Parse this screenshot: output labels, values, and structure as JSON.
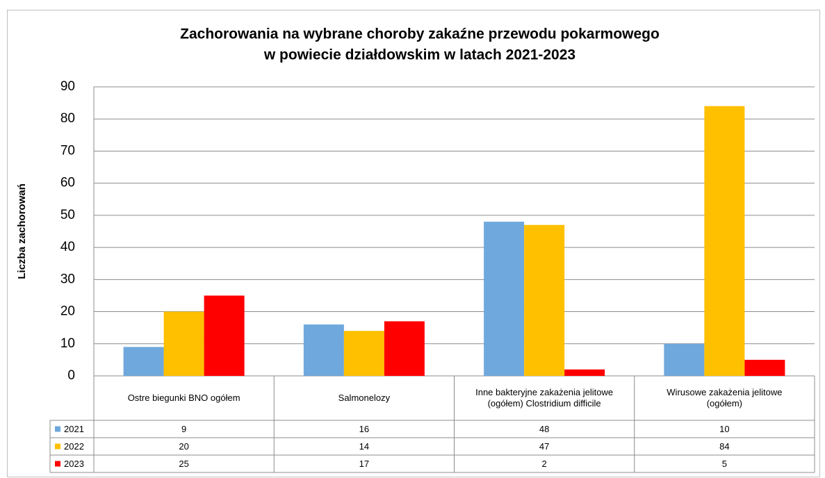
{
  "chart_data": {
    "type": "bar",
    "title": [
      "Zachorowania na wybrane choroby zakaźne przewodu pokarmowego",
      "w powiecie działdowskim w latach 2021-2023"
    ],
    "y_label": "Liczba zachorowań",
    "categories": [
      "Ostre biegunki BNO ogółem",
      "Salmonelozy",
      "Inne bakteryjne zakażenia jelitowe (ogółem) Clostridium difficile",
      "Wirusowe zakażenia jelitowe (ogółem)"
    ],
    "series": [
      {
        "name": "2021",
        "color": "#6fa8dc",
        "values": [
          9,
          16,
          48,
          10
        ]
      },
      {
        "name": "2022",
        "color": "#ffc000",
        "values": [
          20,
          14,
          47,
          84
        ]
      },
      {
        "name": "2023",
        "color": "#ff0000",
        "values": [
          25,
          17,
          2,
          5
        ]
      }
    ],
    "ylim": [
      0,
      90
    ],
    "yticks": [
      0,
      10,
      20,
      30,
      40,
      50,
      60,
      70,
      80,
      90
    ],
    "grid": true
  }
}
